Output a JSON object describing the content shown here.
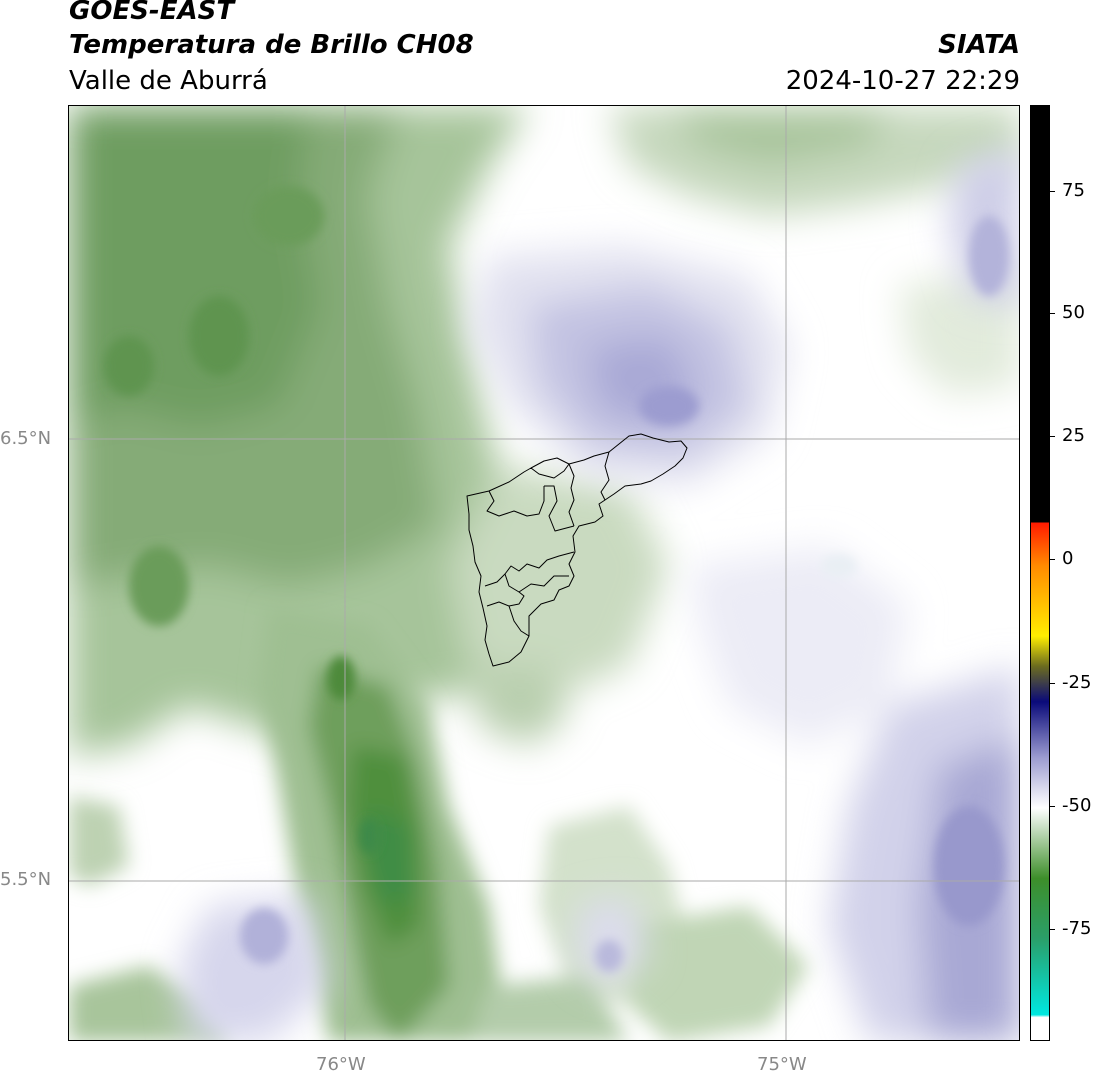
{
  "header": {
    "title_line1": "GOES-EAST",
    "title_line2": "Temperatura de Brillo CH08",
    "subtitle": "Valle de Aburrá",
    "brand": "SIATA",
    "datetime": "2024-10-27 22:29"
  },
  "map": {
    "lat_labels": [
      "6.5°N",
      "5.5°N"
    ],
    "lon_labels": [
      "76°W",
      "75°W"
    ],
    "gridline_color": "#aaaaaa"
  },
  "colorbar": {
    "tick_labels": [
      "75",
      "50",
      "25",
      "0",
      "-25",
      "-50",
      "-75"
    ],
    "tick_values": [
      75,
      50,
      25,
      0,
      -25,
      -50,
      -75
    ],
    "range": [
      -94,
      91
    ],
    "colors": {
      "black": "#000000",
      "red": "#ff1a00",
      "orange": "#ff8a00",
      "yellow": "#ffee00",
      "olive": "#6b6b1f",
      "navy": "#0a0a7a",
      "lavender": "#9b9bd0",
      "white": "#ffffff",
      "green": "#3d8f2a",
      "teal": "#2a9f6a",
      "cyan": "#00e8e0"
    }
  }
}
